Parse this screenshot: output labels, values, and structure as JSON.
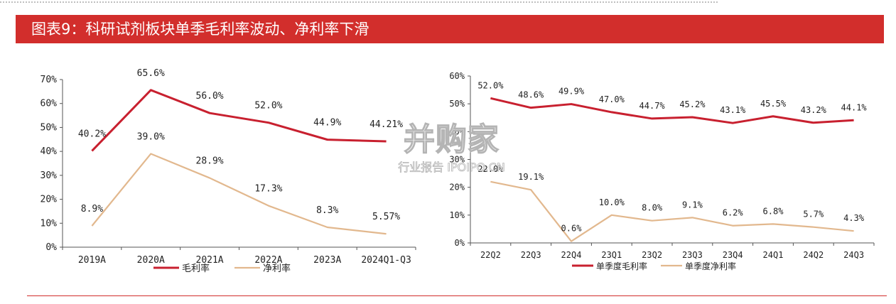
{
  "title": "图表9：科研试剂板块单季毛利率波动、净利率下滑",
  "watermark": {
    "main": "并购家",
    "sub": "行业报告 IPOIPO.CN"
  },
  "colors": {
    "title_bar": "#d22e2c",
    "gross_margin": "#c8202f",
    "net_margin": "#e2b88e"
  },
  "chart_data": [
    {
      "type": "line",
      "categories": [
        "2019A",
        "2020A",
        "2021A",
        "2022A",
        "2023A",
        "2024Q1-Q3"
      ],
      "ylim": [
        0,
        70
      ],
      "yticks": [
        "0%",
        "10%",
        "20%",
        "30%",
        "40%",
        "50%",
        "60%",
        "70%"
      ],
      "ytick_values": [
        0,
        10,
        20,
        30,
        40,
        50,
        60,
        70
      ],
      "grid": false,
      "legend_position": "bottom",
      "series": [
        {
          "name": "毛利率",
          "values": [
            40.2,
            65.6,
            56.0,
            52.0,
            44.9,
            44.21
          ],
          "labels": [
            "40.2%",
            "65.6%",
            "56.0%",
            "52.0%",
            "44.9%",
            "44.21%"
          ]
        },
        {
          "name": "净利率",
          "values": [
            8.9,
            39.0,
            28.9,
            17.3,
            8.3,
            5.57
          ],
          "labels": [
            "8.9%",
            "39.0%",
            "28.9%",
            "17.3%",
            "8.3%",
            "5.57%"
          ]
        }
      ]
    },
    {
      "type": "line",
      "categories": [
        "22Q2",
        "22Q3",
        "22Q4",
        "23Q1",
        "23Q2",
        "23Q3",
        "23Q4",
        "24Q1",
        "24Q2",
        "24Q3"
      ],
      "ylim": [
        0,
        60
      ],
      "yticks": [
        "0%",
        "10%",
        "20%",
        "30%",
        "40%",
        "50%",
        "60%"
      ],
      "ytick_values": [
        0,
        10,
        20,
        30,
        40,
        50,
        60
      ],
      "grid": false,
      "legend_position": "bottom",
      "series": [
        {
          "name": "单季度毛利率",
          "values": [
            52.0,
            48.6,
            49.9,
            47.0,
            44.7,
            45.2,
            43.1,
            45.5,
            43.2,
            44.1
          ],
          "labels": [
            "52.0%",
            "48.6%",
            "49.9%",
            "47.0%",
            "44.7%",
            "45.2%",
            "43.1%",
            "45.5%",
            "43.2%",
            "44.1%"
          ]
        },
        {
          "name": "单季度净利率",
          "values": [
            22.0,
            19.1,
            0.6,
            10.0,
            8.0,
            9.1,
            6.2,
            6.8,
            5.7,
            4.3
          ],
          "labels": [
            "22.0%",
            "19.1%",
            "0.6%",
            "10.0%",
            "8.0%",
            "9.1%",
            "6.2%",
            "6.8%",
            "5.7%",
            "4.3%"
          ]
        }
      ]
    }
  ]
}
